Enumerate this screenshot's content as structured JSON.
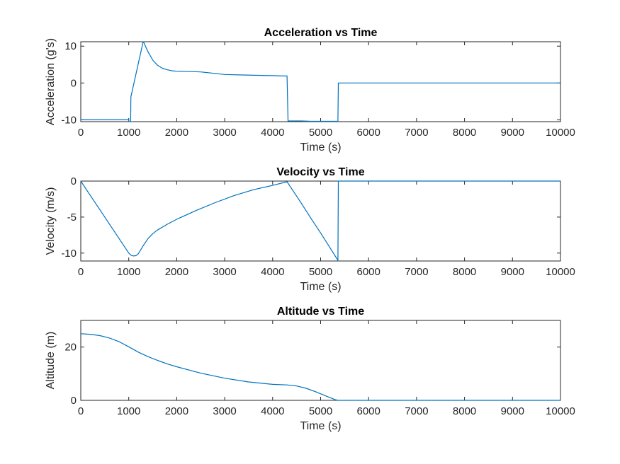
{
  "figure": {
    "line_color": "#0072BD",
    "background": "#ffffff"
  },
  "chart_data": [
    {
      "type": "line",
      "title": "Acceleration vs Time",
      "xlabel": "Time (s)",
      "ylabel": "Acceleration (g's)",
      "xlim": [
        0,
        10000
      ],
      "ylim": [
        -10.5,
        11.2
      ],
      "xticks": [
        0,
        1000,
        2000,
        3000,
        4000,
        5000,
        6000,
        7000,
        8000,
        9000,
        10000
      ],
      "yticks": [
        -10,
        0,
        10
      ],
      "grid": false,
      "series": [
        {
          "x": [
            0,
            1000,
            1002,
            1040,
            1045,
            1300,
            1320,
            1400,
            1500,
            1600,
            1700,
            1800,
            1900,
            2000,
            2300,
            2500,
            2800,
            3000,
            3300,
            3600,
            4000,
            4200,
            4290,
            4300,
            4320,
            4400,
            4600,
            4800,
            5000,
            5200,
            5360,
            5370,
            5400,
            6000,
            8000,
            10000
          ],
          "y": [
            -10,
            -10,
            -10.5,
            -10.5,
            -3.8,
            11.2,
            10.8,
            8.5,
            6.2,
            4.8,
            4.0,
            3.6,
            3.3,
            3.2,
            3.1,
            3.0,
            2.6,
            2.3,
            2.2,
            2.1,
            2.0,
            1.9,
            1.9,
            1.9,
            -10.3,
            -10.3,
            -10.3,
            -10.4,
            -10.4,
            -10.4,
            -10.4,
            0,
            0,
            0,
            0,
            0
          ]
        }
      ]
    },
    {
      "type": "line",
      "title": "Velocity vs Time",
      "xlabel": "Time (s)",
      "ylabel": "Velocity (m/s)",
      "xlim": [
        0,
        10000
      ],
      "ylim": [
        -11.1,
        0
      ],
      "xticks": [
        0,
        1000,
        2000,
        3000,
        4000,
        5000,
        6000,
        7000,
        8000,
        9000,
        10000
      ],
      "yticks": [
        -10,
        -5,
        0
      ],
      "grid": false,
      "series": [
        {
          "x": [
            0,
            200,
            400,
            600,
            800,
            1000,
            1050,
            1100,
            1150,
            1200,
            1300,
            1400,
            1500,
            1600,
            1800,
            2000,
            2400,
            2800,
            3200,
            3600,
            4000,
            4300,
            4400,
            4600,
            4800,
            5000,
            5200,
            5360,
            5370,
            5400,
            7000,
            10000
          ],
          "y": [
            0,
            -2.0,
            -4.0,
            -6.0,
            -8.0,
            -10.0,
            -10.3,
            -10.4,
            -10.35,
            -10.1,
            -9.0,
            -8.0,
            -7.3,
            -6.8,
            -6.0,
            -5.3,
            -4.1,
            -3.0,
            -2.0,
            -1.2,
            -0.6,
            -0.1,
            -1.1,
            -3.1,
            -5.2,
            -7.2,
            -9.3,
            -11.0,
            0,
            0,
            0,
            0
          ]
        }
      ]
    },
    {
      "type": "line",
      "title": "Altitude vs Time",
      "xlabel": "Time (s)",
      "ylabel": "Altitude (m)",
      "xlim": [
        0,
        10000
      ],
      "ylim": [
        0,
        30
      ],
      "xticks": [
        0,
        1000,
        2000,
        3000,
        4000,
        5000,
        6000,
        7000,
        8000,
        9000,
        10000
      ],
      "yticks": [
        0,
        20
      ],
      "grid": false,
      "series": [
        {
          "x": [
            0,
            200,
            400,
            600,
            800,
            1000,
            1200,
            1400,
            1600,
            1800,
            2000,
            2500,
            3000,
            3500,
            4000,
            4300,
            4500,
            4700,
            4900,
            5100,
            5300,
            5360,
            5400,
            7000,
            10000
          ],
          "y": [
            25,
            24.8,
            24.3,
            23.4,
            22.0,
            20.1,
            18.1,
            16.4,
            15.0,
            13.7,
            12.6,
            10.2,
            8.3,
            6.9,
            6.0,
            5.8,
            5.4,
            4.5,
            3.2,
            1.7,
            0.3,
            0,
            0,
            0,
            0
          ]
        }
      ]
    }
  ]
}
